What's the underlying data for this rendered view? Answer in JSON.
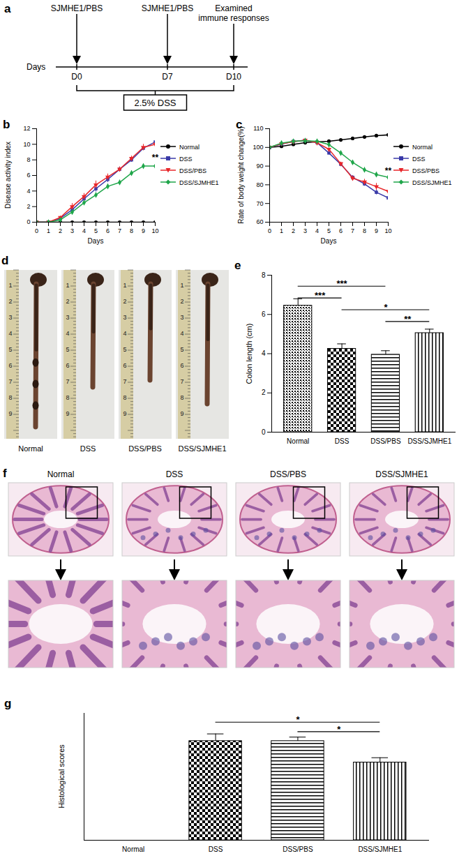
{
  "timeline": {
    "panel": "a",
    "axis_label": "Days",
    "ticks": [
      "D0",
      "D7",
      "D10"
    ],
    "events": [
      {
        "day": "D0",
        "label": [
          "SJMHE1/PBS"
        ]
      },
      {
        "day": "D7",
        "label": [
          "SJMHE1/PBS"
        ]
      },
      {
        "day": "D10",
        "label": [
          "Examined",
          "immune responses"
        ]
      }
    ],
    "treatment": "2.5% DSS"
  },
  "chart_data": [
    {
      "panel": "b",
      "type": "line",
      "x_label": "Days",
      "y_label": "Disease activity index",
      "x": [
        0,
        1,
        2,
        3,
        4,
        5,
        6,
        7,
        8,
        9,
        10
      ],
      "xlim": [
        0,
        10
      ],
      "xticks": [
        0,
        1,
        2,
        3,
        4,
        5,
        6,
        7,
        8,
        9,
        10
      ],
      "ylim": [
        0,
        12
      ],
      "yticks": [
        0,
        2,
        4,
        6,
        8,
        10,
        12
      ],
      "legend": "right",
      "series": [
        {
          "name": "Normal",
          "color": "#000000",
          "marker": "circle",
          "values": [
            0,
            0,
            0,
            0,
            0,
            0,
            0,
            0,
            0,
            0,
            0
          ],
          "errors": [
            0,
            0,
            0,
            0,
            0,
            0,
            0,
            0,
            0,
            0,
            0
          ]
        },
        {
          "name": "DSS",
          "color": "#3a3aa8",
          "marker": "square",
          "values": [
            0,
            0,
            0.5,
            1.6,
            3,
            4.3,
            5.5,
            6.8,
            8,
            9.5,
            10.3
          ],
          "errors": [
            0,
            0,
            0.2,
            0.3,
            0.3,
            0.4,
            0.4,
            0.3,
            0.3,
            0.3,
            0.4
          ]
        },
        {
          "name": "DSS/PBS",
          "color": "#e8262a",
          "marker": "triangle-down",
          "values": [
            0,
            0,
            0.6,
            2,
            3.3,
            4.8,
            5.8,
            6.8,
            8.2,
            9.6,
            10
          ],
          "errors": [
            0,
            0,
            0.2,
            0.4,
            0.4,
            0.5,
            0.4,
            0.3,
            0.3,
            0.4,
            0.4
          ]
        },
        {
          "name": "DSS/SJMHE1",
          "color": "#1fa64a",
          "marker": "diamond",
          "values": [
            0,
            0,
            0.3,
            1.3,
            2.5,
            3.5,
            4.6,
            5.1,
            6.3,
            7.2,
            7.2
          ],
          "errors": [
            0,
            0,
            0.1,
            0.3,
            0.3,
            0.3,
            0.3,
            0.3,
            0.3,
            0.3,
            0.5
          ]
        }
      ],
      "annotations": [
        {
          "series": "DSS/SJMHE1",
          "x": 10,
          "label": "**"
        }
      ]
    },
    {
      "panel": "c",
      "type": "line",
      "x_label": "Days",
      "y_label": "Rate of body weight change(%)",
      "x": [
        0,
        1,
        2,
        3,
        4,
        5,
        6,
        7,
        8,
        9,
        10
      ],
      "xlim": [
        0,
        10
      ],
      "xticks": [
        0,
        1,
        2,
        3,
        4,
        5,
        6,
        7,
        8,
        9,
        10
      ],
      "ylim": [
        60,
        110
      ],
      "yticks": [
        60,
        70,
        80,
        90,
        100,
        110
      ],
      "legend": "right",
      "series": [
        {
          "name": "Normal",
          "color": "#000000",
          "marker": "circle",
          "values": [
            100,
            100.6,
            101.6,
            102.5,
            103,
            103.3,
            104,
            104.8,
            105.6,
            106.3,
            106.7
          ],
          "errors": [
            0,
            0.3,
            0.3,
            0.3,
            0.3,
            0.3,
            0.3,
            0.3,
            0.3,
            0.3,
            0.3
          ]
        },
        {
          "name": "DSS",
          "color": "#3a3aa8",
          "marker": "square",
          "values": [
            100,
            101.8,
            103.2,
            103.8,
            102.6,
            97,
            91,
            84,
            80.5,
            76,
            73
          ],
          "errors": [
            0,
            0.4,
            0.5,
            0.5,
            0.6,
            0.8,
            0.8,
            1,
            1.2,
            1.3,
            1.2
          ]
        },
        {
          "name": "DSS/PBS",
          "color": "#e8262a",
          "marker": "triangle-down",
          "values": [
            100,
            102,
            103,
            103.8,
            102.5,
            99,
            91.3,
            83.5,
            81.5,
            79,
            76.5
          ],
          "errors": [
            0,
            0.4,
            0.5,
            0.5,
            0.6,
            0.8,
            0.9,
            1.3,
            1.5,
            1.8,
            2
          ]
        },
        {
          "name": "DSS/SJMHE1",
          "color": "#1fa64a",
          "marker": "diamond",
          "values": [
            100,
            102.3,
            103.3,
            103.6,
            103.3,
            101.5,
            97,
            92,
            88,
            85.5,
            84
          ],
          "errors": [
            0,
            0.4,
            0.5,
            0.5,
            0.5,
            0.8,
            0.9,
            1.2,
            1.3,
            1.2,
            1
          ]
        }
      ],
      "annotations": [
        {
          "series": "DSS/SJMHE1",
          "x": 10,
          "label": "**"
        }
      ]
    },
    {
      "panel": "e",
      "type": "bar",
      "y_label": "Colon length (cm)",
      "categories": [
        "Normal",
        "DSS",
        "DSS/PBS",
        "DSS/SJMHE1"
      ],
      "values": [
        6.45,
        4.25,
        3.95,
        5.05
      ],
      "errors": [
        0.35,
        0.25,
        0.2,
        0.2
      ],
      "color": "#000000",
      "ylim": [
        0,
        8
      ],
      "yticks": [
        0,
        2,
        4,
        6,
        8
      ],
      "annotations": [
        {
          "from": "Normal",
          "to": "DSS/PBS",
          "label": "***"
        },
        {
          "from": "Normal",
          "to": "DSS",
          "label": "***"
        },
        {
          "from": "DSS",
          "to": "DSS/SJMHE1",
          "label": "*"
        },
        {
          "from": "DSS/PBS",
          "to": "DSS/SJMHE1",
          "label": "**"
        }
      ]
    },
    {
      "panel": "g",
      "type": "bar",
      "y_label": "Histological scores",
      "categories": [
        "Normal",
        "DSS",
        "DSS/PBS",
        "DSS/SJMHE1"
      ],
      "values": [
        0,
        6.25,
        6.25,
        4.9
      ],
      "errors": [
        0,
        0.45,
        0.25,
        0.3
      ],
      "color": "#000000",
      "ylim": [
        0,
        8
      ],
      "tick_labels": "x",
      "annotations": [
        {
          "from": "DSS",
          "to": "DSS/SJMHE1",
          "label": "*"
        },
        {
          "from": "DSS/PBS",
          "to": "DSS/SJMHE1",
          "label": "*"
        }
      ]
    }
  ],
  "photos": {
    "panel": "d",
    "labels": [
      "Normal",
      "DSS",
      "DSS/PBS",
      "DSS/SJMHE1"
    ],
    "ruler": [
      1,
      2,
      3,
      4,
      5,
      6,
      7,
      8,
      9
    ]
  },
  "histology": {
    "panel": "f",
    "labels": [
      "Normal",
      "DSS",
      "DSS/PBS",
      "DSS/SJMHE1"
    ]
  }
}
